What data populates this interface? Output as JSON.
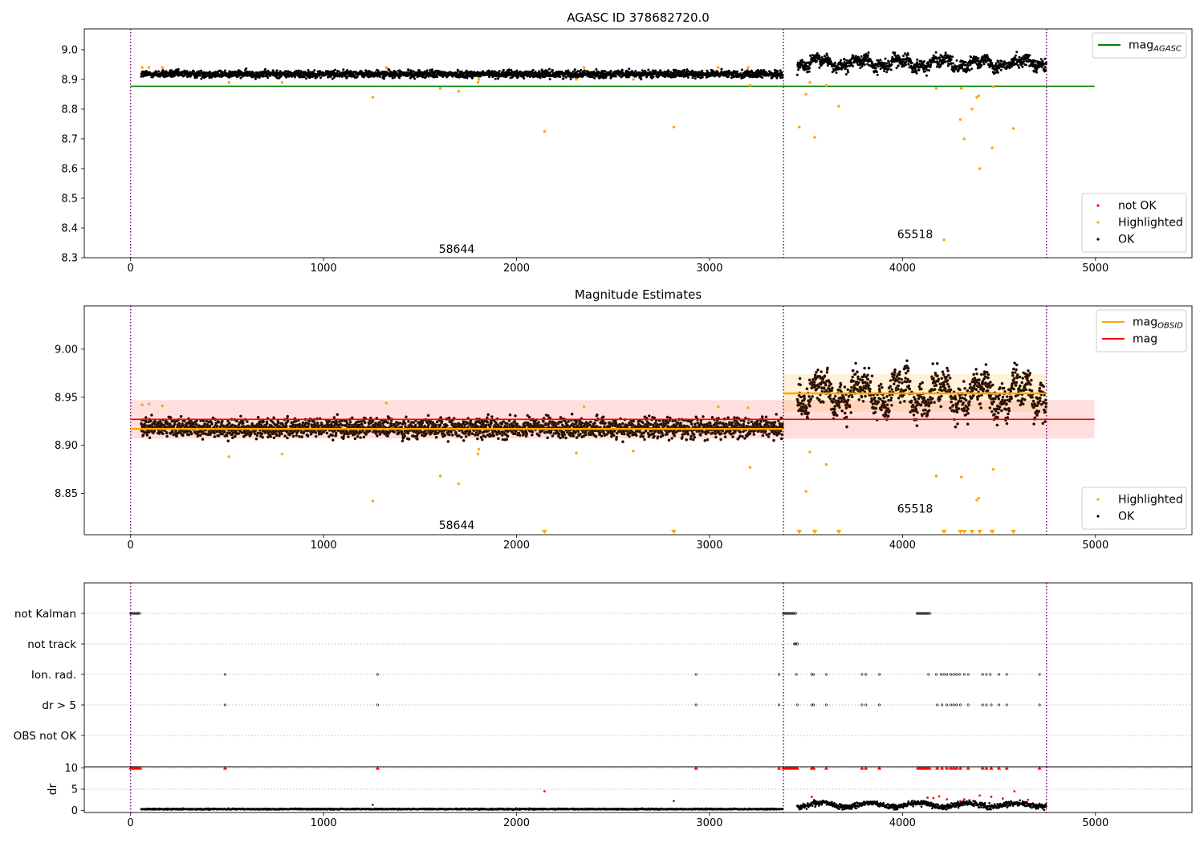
{
  "figure": {
    "background": "#ffffff"
  },
  "chart_data": [
    {
      "id": "p1",
      "type": "scatter",
      "title": "AGASC ID 378682720.0",
      "xlim": [
        -240,
        5500
      ],
      "ylim": [
        8.3,
        9.07
      ],
      "xticks": [
        0,
        1000,
        2000,
        3000,
        4000,
        5000
      ],
      "yticks": [
        8.3,
        8.4,
        8.5,
        8.6,
        8.7,
        8.8,
        8.9,
        9.0
      ],
      "ytick_labels": [
        "8.3",
        "8.4",
        "8.5",
        "8.6",
        "8.7",
        "8.8",
        "8.9",
        "9.0"
      ],
      "obsid_boundaries": [
        0,
        3383,
        4746
      ],
      "obsid_labels": [
        {
          "text": "58644",
          "x": 1690,
          "y": 8.33
        },
        {
          "text": "65518",
          "x": 4065,
          "y": 8.38
        }
      ],
      "hlines": [
        {
          "name": "mag_AGASC",
          "y": 8.877,
          "x0": 0,
          "x1": 4995,
          "color": "#008000"
        }
      ],
      "ok_segments": [
        {
          "x0": 55,
          "x1": 3380,
          "mean": 8.918,
          "spread": 0.012
        },
        {
          "x0": 3455,
          "x1": 4746,
          "mean": 8.955,
          "spread": 0.02
        }
      ],
      "series": [
        {
          "name": "not OK",
          "color": "#ff0000",
          "points": []
        },
        {
          "name": "Highlighted",
          "color": "#ffa500",
          "points": [
            [
              60,
              8.94
            ],
            [
              95,
              8.94
            ],
            [
              165,
              8.94
            ],
            [
              510,
              8.89
            ],
            [
              785,
              8.89
            ],
            [
              1255,
              8.84
            ],
            [
              1325,
              8.94
            ],
            [
              1605,
              8.87
            ],
            [
              1700,
              8.86
            ],
            [
              1800,
              8.89
            ],
            [
              1805,
              8.9
            ],
            [
              2145,
              8.725
            ],
            [
              2310,
              8.9
            ],
            [
              2350,
              8.94
            ],
            [
              2605,
              8.9
            ],
            [
              2815,
              8.74
            ],
            [
              3045,
              8.94
            ],
            [
              3200,
              8.94
            ],
            [
              3210,
              8.88
            ],
            [
              3465,
              8.74
            ],
            [
              3500,
              8.85
            ],
            [
              3545,
              8.705
            ],
            [
              3520,
              8.89
            ],
            [
              3605,
              8.88
            ],
            [
              3670,
              8.81
            ],
            [
              4175,
              8.87
            ],
            [
              4215,
              8.36
            ],
            [
              4300,
              8.765
            ],
            [
              4305,
              8.87
            ],
            [
              4320,
              8.7
            ],
            [
              4360,
              8.8
            ],
            [
              4385,
              8.84
            ],
            [
              4395,
              8.845
            ],
            [
              4400,
              8.6
            ],
            [
              4465,
              8.67
            ],
            [
              4470,
              8.875
            ],
            [
              4575,
              8.735
            ]
          ]
        },
        {
          "name": "OK",
          "color": "#000000",
          "points": []
        }
      ],
      "legend_top": [
        {
          "label": "mag",
          "sub": "AGASC",
          "color": "#008000",
          "kind": "line"
        }
      ],
      "legend_bottom": [
        {
          "label": "not OK",
          "color": "#ff0000",
          "kind": "dot"
        },
        {
          "label": "Highlighted",
          "color": "#ffa500",
          "kind": "dot"
        },
        {
          "label": "OK",
          "color": "#000000",
          "kind": "dot"
        }
      ]
    },
    {
      "id": "p2",
      "type": "scatter",
      "title": "Magnitude Estimates",
      "xlim": [
        -240,
        5500
      ],
      "ylim": [
        8.807,
        9.045
      ],
      "xticks": [
        0,
        1000,
        2000,
        3000,
        4000,
        5000
      ],
      "yticks": [
        8.85,
        8.9,
        8.95,
        9.0
      ],
      "ytick_labels": [
        "8.85",
        "8.90",
        "8.95",
        "9.00"
      ],
      "obsid_boundaries": [
        0,
        3383,
        4746
      ],
      "obsid_labels": [
        {
          "text": "58644",
          "x": 1690,
          "y": 8.817
        },
        {
          "text": "65518",
          "x": 4065,
          "y": 8.834
        }
      ],
      "bands": [
        {
          "x0": 0,
          "x1": 4995,
          "y0": 8.907,
          "y1": 8.947,
          "color": "#ff0000",
          "opacity": 0.13
        },
        {
          "x0": 3383,
          "x1": 4746,
          "y0": 8.935,
          "y1": 8.974,
          "color": "#ffa500",
          "opacity": 0.15
        }
      ],
      "hlines": [
        {
          "name": "mag_OBSID 58644",
          "y": 8.917,
          "x0": 0,
          "x1": 3383,
          "color": "#ffa500",
          "width": 2.5
        },
        {
          "name": "mag_OBSID 65518",
          "y": 8.954,
          "x0": 3383,
          "x1": 4746,
          "color": "#ffa500",
          "width": 2.5
        },
        {
          "name": "mag",
          "y": 8.927,
          "x0": 0,
          "x1": 4995,
          "color": "#ff0000",
          "width": 1.6
        }
      ],
      "ok_segments": [
        {
          "x0": 55,
          "x1": 3380,
          "mean": 8.918,
          "spread": 0.01
        },
        {
          "x0": 3455,
          "x1": 4746,
          "mean": 8.954,
          "spread": 0.017
        }
      ],
      "series": [
        {
          "name": "Highlighted",
          "color": "#ffa500",
          "points": [
            [
              60,
              8.942
            ],
            [
              95,
              8.943
            ],
            [
              165,
              8.941
            ],
            [
              510,
              8.888
            ],
            [
              785,
              8.891
            ],
            [
              1255,
              8.842
            ],
            [
              1325,
              8.944
            ],
            [
              1605,
              8.868
            ],
            [
              1700,
              8.86
            ],
            [
              1800,
              8.891
            ],
            [
              1805,
              8.896
            ],
            [
              2310,
              8.892
            ],
            [
              2350,
              8.94
            ],
            [
              2605,
              8.894
            ],
            [
              3045,
              8.94
            ],
            [
              3200,
              8.939
            ],
            [
              3210,
              8.877
            ],
            [
              3500,
              8.852
            ],
            [
              3520,
              8.893
            ],
            [
              3605,
              8.88
            ],
            [
              4175,
              8.868
            ],
            [
              4305,
              8.867
            ],
            [
              4385,
              8.843
            ],
            [
              4395,
              8.845
            ],
            [
              4470,
              8.875
            ]
          ]
        },
        {
          "name": "OK",
          "color": "#000000",
          "points": []
        }
      ],
      "below_markers": [
        2145,
        2815,
        3465,
        3545,
        3670,
        4215,
        4300,
        4320,
        4360,
        4400,
        4465,
        4575
      ],
      "legend_top": [
        {
          "label": "mag",
          "sub": "OBSID",
          "color": "#ffa500",
          "kind": "line"
        },
        {
          "label": "mag",
          "sub": "",
          "color": "#ff0000",
          "kind": "line"
        }
      ],
      "legend_bottom": [
        {
          "label": "Highlighted",
          "color": "#ffa500",
          "kind": "dot"
        },
        {
          "label": "OK",
          "color": "#000000",
          "kind": "dot"
        }
      ]
    },
    {
      "id": "p3",
      "type": "scatter",
      "title": "",
      "xlim": [
        -240,
        5500
      ],
      "xticks": [
        0,
        1000,
        2000,
        3000,
        4000,
        5000
      ],
      "categories": [
        "not Kalman",
        "not track",
        "Ion. rad.",
        "dr > 5",
        "OBS not OK"
      ],
      "obsid_boundaries": [
        0,
        3383,
        4746
      ],
      "flag_points": {
        "not Kalman": [
          [
            0,
            50
          ],
          [
            3383,
            3450
          ],
          [
            4075,
            4145
          ]
        ],
        "not track": [
          [
            3440,
            3458
          ]
        ],
        "Ion. rad.": [
          490,
          1280,
          2930,
          3360,
          3450,
          3530,
          3540,
          3605,
          3790,
          3810,
          3880,
          4135,
          4175,
          4200,
          4215,
          4230,
          4250,
          4265,
          4280,
          4295,
          4320,
          4340,
          4415,
          4435,
          4455,
          4500,
          4540,
          4710
        ],
        "dr > 5": [
          490,
          1280,
          2930,
          3360,
          3455,
          3530,
          3540,
          3605,
          3790,
          3810,
          3880,
          4180,
          4205,
          4230,
          4250,
          4265,
          4280,
          4300,
          4340,
          4415,
          4435,
          4460,
          4500,
          4540,
          4710
        ],
        "OBS not OK": []
      }
    },
    {
      "id": "p4",
      "type": "scatter",
      "title": "",
      "ylabel": "dr",
      "xlim": [
        -240,
        5500
      ],
      "ylim": [
        -0.5,
        10.3
      ],
      "xticks": [
        0,
        1000,
        2000,
        3000,
        4000,
        5000
      ],
      "yticks": [
        0,
        5,
        10
      ],
      "ytick_labels": [
        "0",
        "5",
        "10"
      ],
      "obsid_boundaries": [
        0,
        3383,
        4746
      ],
      "dr_segments": [
        {
          "x0": 55,
          "x1": 3380,
          "mean": 0.3,
          "spread": 0.12
        },
        {
          "x0": 3455,
          "x1": 4746,
          "mean": 1.3,
          "spread": 0.6
        }
      ],
      "clipped_red": [
        0,
        10,
        20,
        30,
        40,
        50,
        490,
        1280,
        2930,
        3360,
        3383,
        3395,
        3405,
        3415,
        3425,
        3435,
        3445,
        3455,
        3530,
        3540,
        3605,
        3790,
        3810,
        3880,
        4080,
        4090,
        4100,
        4110,
        4120,
        4130,
        4140,
        4180,
        4205,
        4230,
        4250,
        4265,
        4280,
        4300,
        4340,
        4415,
        4435,
        4460,
        4500,
        4540,
        4710
      ],
      "red_points": [
        [
          2145,
          4.5
        ],
        [
          3530,
          3.2
        ],
        [
          4130,
          3.0
        ],
        [
          4160,
          2.9
        ],
        [
          4190,
          3.3
        ],
        [
          4230,
          2.6
        ],
        [
          4300,
          2.2
        ],
        [
          4320,
          2.6
        ],
        [
          4400,
          3.5
        ],
        [
          4460,
          3.2
        ],
        [
          4520,
          2.8
        ],
        [
          4580,
          4.5
        ],
        [
          4650,
          2.5
        ]
      ],
      "other_points": [
        [
          2815,
          2.2
        ],
        [
          1255,
          1.3
        ]
      ]
    }
  ]
}
